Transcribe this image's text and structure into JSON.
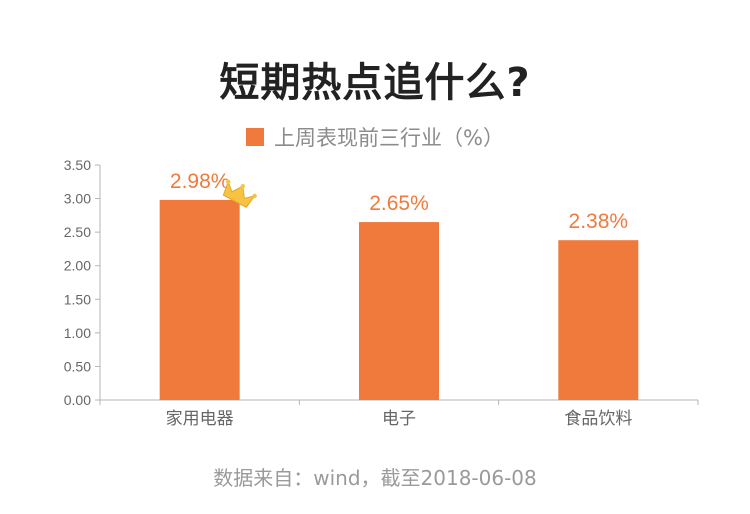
{
  "title": "短期热点追什么?",
  "source": "数据来自：wind，截至2018-06-08",
  "colors": {
    "bar": "#ef7a3c",
    "label": "#ef7a3c",
    "axis": "#b5b5b5",
    "crown": "#f7c341"
  },
  "chart_data": {
    "type": "bar",
    "title": "短期热点追什么?",
    "categories": [
      "家用电器",
      "电子",
      "食品饮料"
    ],
    "series": [
      {
        "name": "上周表现前三行业（%）",
        "values": [
          2.98,
          2.65,
          2.38
        ],
        "data_labels": [
          "2.98%",
          "2.65%",
          "2.38%"
        ]
      }
    ],
    "ylim": [
      0,
      3.5
    ],
    "yticks": [
      "0.00",
      "0.50",
      "1.00",
      "1.50",
      "2.00",
      "2.50",
      "3.00",
      "3.50"
    ],
    "xlabel": "",
    "ylabel": "",
    "grid": false,
    "legend_position": "top-center",
    "annotation_icon": "crown-icon"
  }
}
